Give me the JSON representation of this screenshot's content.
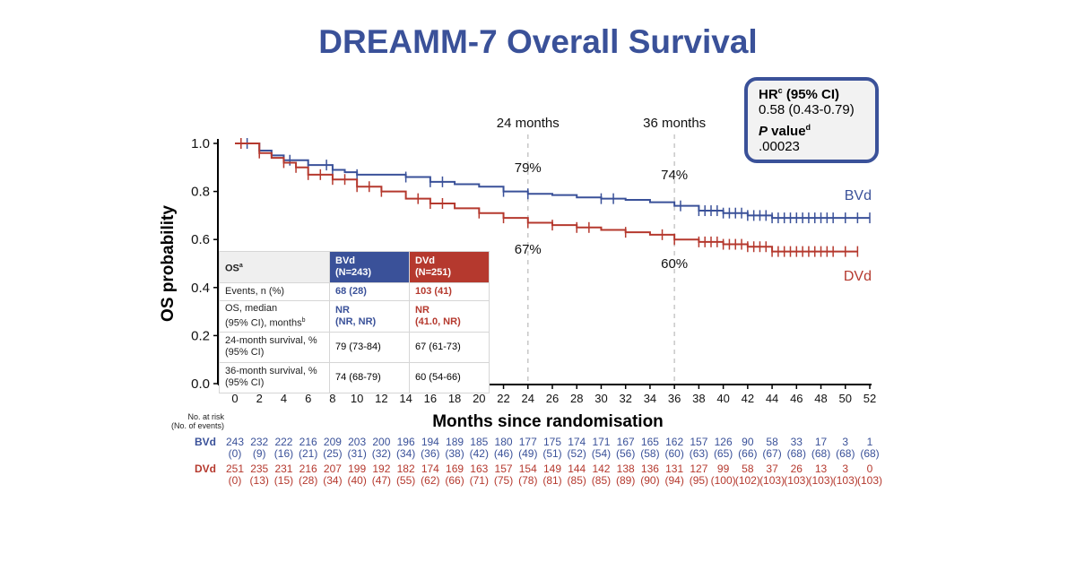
{
  "title": "DREAMM-7 Overall Survival",
  "hr_box": {
    "hr_label": "HR",
    "hr_sup": "c",
    "hr_label_suffix": " (95% CI)",
    "hr_value": "0.58 (0.43-0.79)",
    "p_label_italic": "P",
    "p_label_rest": " value",
    "p_sup": "d",
    "p_value": ".00023"
  },
  "colors": {
    "bvd": "#3a5199",
    "dvd": "#b5392e",
    "title": "#3a5199"
  },
  "annotations": {
    "month24_label": "24 months",
    "month36_label": "36 months",
    "bvd_24": "79%",
    "dvd_24": "67%",
    "bvd_36": "74%",
    "dvd_36": "60%",
    "bvd_curve_label": "BVd",
    "dvd_curve_label": "DVd"
  },
  "os_table": {
    "header": {
      "label": "OS",
      "label_sup": "a",
      "bvd": "BVd",
      "bvd_n": "(N=243)",
      "dvd": "DVd",
      "dvd_n": "(N=251)"
    },
    "rows": [
      {
        "label1": "Events, n (%)",
        "label2": "",
        "sup": "",
        "bvd1": "68 (28)",
        "bvd2": "",
        "dvd1": "103 (41)",
        "dvd2": "",
        "colored": true
      },
      {
        "label1": "OS, median",
        "label2": "(95% CI), months",
        "sup": "b",
        "bvd1": "NR",
        "bvd2": "(NR, NR)",
        "dvd1": "NR",
        "dvd2": "(41.0, NR)",
        "colored": true
      },
      {
        "label1": "24-month survival, %",
        "label2": "(95% CI)",
        "sup": "",
        "bvd1": "79 (73-84)",
        "bvd2": "",
        "dvd1": "67 (61-73)",
        "dvd2": "",
        "colored": false
      },
      {
        "label1": "36-month survival, %",
        "label2": "(95% CI)",
        "sup": "",
        "bvd1": "74 (68-79)",
        "bvd2": "",
        "dvd1": "60 (54-66)",
        "dvd2": "",
        "colored": false
      }
    ]
  },
  "risk_table": {
    "label_line1": "No. at risk",
    "label_line2": "(No. of events)",
    "bvd_label": "BVd",
    "dvd_label": "DVd",
    "bvd_at_risk": [
      243,
      232,
      222,
      216,
      209,
      203,
      200,
      196,
      194,
      189,
      185,
      180,
      177,
      175,
      174,
      171,
      167,
      165,
      162,
      157,
      126,
      90,
      58,
      33,
      17,
      3,
      1
    ],
    "bvd_events": [
      0,
      9,
      16,
      21,
      25,
      31,
      32,
      34,
      36,
      38,
      42,
      46,
      49,
      51,
      52,
      54,
      56,
      58,
      60,
      63,
      65,
      66,
      67,
      68,
      68,
      68,
      68
    ],
    "dvd_at_risk": [
      251,
      235,
      231,
      216,
      207,
      199,
      192,
      182,
      174,
      169,
      163,
      157,
      154,
      149,
      144,
      142,
      138,
      136,
      131,
      127,
      99,
      58,
      37,
      26,
      13,
      3,
      0
    ],
    "dvd_events": [
      0,
      13,
      15,
      28,
      34,
      40,
      47,
      55,
      62,
      66,
      71,
      75,
      78,
      81,
      85,
      85,
      89,
      90,
      94,
      95,
      100,
      102,
      103,
      103,
      103,
      103,
      103
    ]
  },
  "chart_data": {
    "type": "line",
    "title": "DREAMM-7 Overall Survival",
    "xlabel": "Months since randomisation",
    "ylabel": "OS probability",
    "xlim": [
      0,
      52
    ],
    "ylim": [
      0,
      1.0
    ],
    "x_ticks": [
      0,
      2,
      4,
      6,
      8,
      10,
      12,
      14,
      16,
      18,
      20,
      22,
      24,
      26,
      28,
      30,
      32,
      34,
      36,
      38,
      40,
      42,
      44,
      46,
      48,
      50,
      52
    ],
    "y_ticks": [
      "0.0",
      "0.2",
      "0.4",
      "0.6",
      "0.8",
      "1.0"
    ],
    "reference_lines_x": [
      24,
      36
    ],
    "grid": false,
    "series": [
      {
        "name": "BVd",
        "color": "#3a5199",
        "step_points": [
          [
            0,
            1.0
          ],
          [
            1,
            1.0
          ],
          [
            2,
            0.97
          ],
          [
            3,
            0.95
          ],
          [
            4,
            0.93
          ],
          [
            6,
            0.91
          ],
          [
            8,
            0.89
          ],
          [
            9,
            0.88
          ],
          [
            10,
            0.87
          ],
          [
            14,
            0.86
          ],
          [
            16,
            0.84
          ],
          [
            18,
            0.83
          ],
          [
            20,
            0.82
          ],
          [
            22,
            0.8
          ],
          [
            24,
            0.79
          ],
          [
            26,
            0.785
          ],
          [
            28,
            0.775
          ],
          [
            30,
            0.77
          ],
          [
            32,
            0.765
          ],
          [
            34,
            0.755
          ],
          [
            36,
            0.74
          ],
          [
            38,
            0.72
          ],
          [
            40,
            0.71
          ],
          [
            42,
            0.7
          ],
          [
            44,
            0.69
          ],
          [
            52,
            0.69
          ]
        ],
        "censor_x": [
          1,
          2,
          4.5,
          6,
          7.5,
          8,
          10,
          14,
          16,
          17,
          22,
          24,
          30,
          31,
          36.5,
          38,
          38.5,
          39,
          39.5,
          40,
          40.5,
          41,
          41.5,
          42,
          42.5,
          43,
          43.5,
          44,
          44.5,
          45,
          45.5,
          46,
          46.5,
          47,
          47.5,
          48,
          48.5,
          49,
          50,
          51,
          52
        ]
      },
      {
        "name": "DVd",
        "color": "#b5392e",
        "step_points": [
          [
            0,
            1.0
          ],
          [
            1,
            1.0
          ],
          [
            2,
            0.96
          ],
          [
            3,
            0.94
          ],
          [
            4,
            0.92
          ],
          [
            5,
            0.9
          ],
          [
            6,
            0.87
          ],
          [
            8,
            0.85
          ],
          [
            10,
            0.82
          ],
          [
            12,
            0.8
          ],
          [
            14,
            0.77
          ],
          [
            16,
            0.75
          ],
          [
            18,
            0.73
          ],
          [
            20,
            0.71
          ],
          [
            22,
            0.69
          ],
          [
            24,
            0.67
          ],
          [
            26,
            0.66
          ],
          [
            28,
            0.65
          ],
          [
            30,
            0.64
          ],
          [
            32,
            0.63
          ],
          [
            34,
            0.62
          ],
          [
            36,
            0.6
          ],
          [
            38,
            0.59
          ],
          [
            40,
            0.58
          ],
          [
            42,
            0.57
          ],
          [
            44,
            0.55
          ],
          [
            51,
            0.55
          ]
        ],
        "censor_x": [
          0.5,
          2,
          4,
          5,
          6,
          7,
          8,
          9,
          10,
          11,
          12,
          15,
          16,
          17,
          20,
          22,
          24,
          26,
          28,
          29,
          32,
          35,
          36,
          38,
          38.5,
          39,
          39.5,
          40,
          40.5,
          41,
          41.5,
          42,
          42.5,
          43,
          43.5,
          44,
          44.5,
          45,
          45.5,
          46,
          46.5,
          47,
          47.5,
          48,
          48.5,
          49,
          50,
          51
        ]
      }
    ]
  }
}
